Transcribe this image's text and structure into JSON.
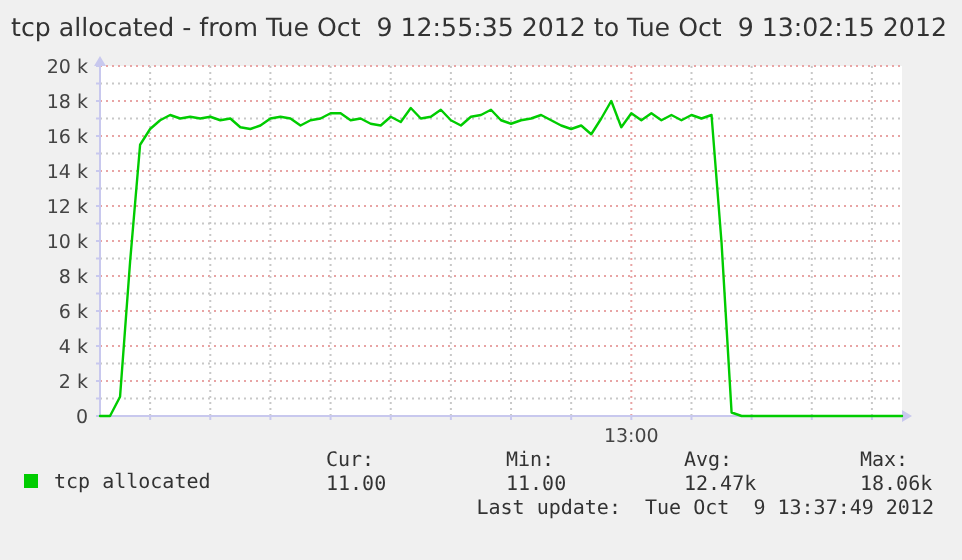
{
  "chart_data": {
    "type": "line",
    "title": "tcp allocated - from Tue Oct  9 12:55:35 2012 to Tue Oct  9 13:02:15 2012",
    "categories": [
      null,
      null,
      null,
      null,
      null,
      null,
      null,
      null,
      null,
      null,
      null,
      null,
      null,
      null,
      null,
      null,
      null,
      null,
      null,
      null,
      null,
      null,
      null,
      null,
      null,
      null,
      null,
      null,
      null,
      null,
      null,
      null,
      null,
      null,
      null,
      null,
      null,
      null,
      null,
      null,
      null,
      null,
      null,
      null,
      null,
      null,
      null,
      null,
      null,
      null,
      null,
      null,
      null,
      null,
      null,
      null,
      null,
      null,
      null,
      null,
      null,
      null,
      null,
      null,
      null,
      null,
      null,
      null,
      null,
      null,
      null,
      null,
      null,
      null,
      null,
      null,
      null,
      null,
      null,
      null,
      null
    ],
    "series": [
      {
        "name": "tcp allocated",
        "color": "#00cc00",
        "values": [
          0,
          0,
          1100,
          8800,
          15500,
          16400,
          16900,
          17200,
          17000,
          17100,
          17000,
          17100,
          16900,
          17000,
          16500,
          16400,
          16600,
          17000,
          17100,
          17000,
          16600,
          16900,
          17000,
          17300,
          17300,
          16900,
          17000,
          16700,
          16600,
          17100,
          16800,
          17600,
          17000,
          17100,
          17500,
          16900,
          16600,
          17100,
          17200,
          17500,
          16900,
          16700,
          16900,
          17000,
          17200,
          16900,
          16600,
          16400,
          16600,
          16100,
          17000,
          18000,
          16500,
          17300,
          16900,
          17300,
          16900,
          17200,
          16900,
          17200,
          17000,
          17200,
          9900,
          200,
          0,
          0,
          0,
          0,
          0,
          0,
          0,
          0,
          0,
          0,
          0,
          0,
          0,
          0,
          0,
          0,
          0
        ]
      }
    ],
    "ylim": [
      0,
      20000
    ],
    "yticks": [
      {
        "value": 0,
        "label": "0"
      },
      {
        "value": 1000,
        "label": null
      },
      {
        "value": 2000,
        "label": "2 k"
      },
      {
        "value": 3000,
        "label": null
      },
      {
        "value": 4000,
        "label": "4 k"
      },
      {
        "value": 5000,
        "label": null
      },
      {
        "value": 6000,
        "label": "6 k"
      },
      {
        "value": 7000,
        "label": null
      },
      {
        "value": 8000,
        "label": "8 k"
      },
      {
        "value": 9000,
        "label": null
      },
      {
        "value": 10000,
        "label": "10 k"
      },
      {
        "value": 11000,
        "label": null
      },
      {
        "value": 12000,
        "label": "12 k"
      },
      {
        "value": 13000,
        "label": null
      },
      {
        "value": 14000,
        "label": "14 k"
      },
      {
        "value": 15000,
        "label": null
      },
      {
        "value": 16000,
        "label": "16 k"
      },
      {
        "value": 17000,
        "label": null
      },
      {
        "value": 18000,
        "label": "18 k"
      },
      {
        "value": 19000,
        "label": null
      },
      {
        "value": 20000,
        "label": "20 k"
      }
    ],
    "grid": true,
    "legend": "bottom",
    "marker": "none",
    "line_style": "solid",
    "annotations": [
      "13:00",
      "Cur:",
      "Min:",
      "Avg:",
      "Max:",
      "11.00",
      "11.00",
      "12.47k",
      "18.06k",
      "Last update:  Tue Oct  9 13:37:49 2012"
    ]
  }
}
